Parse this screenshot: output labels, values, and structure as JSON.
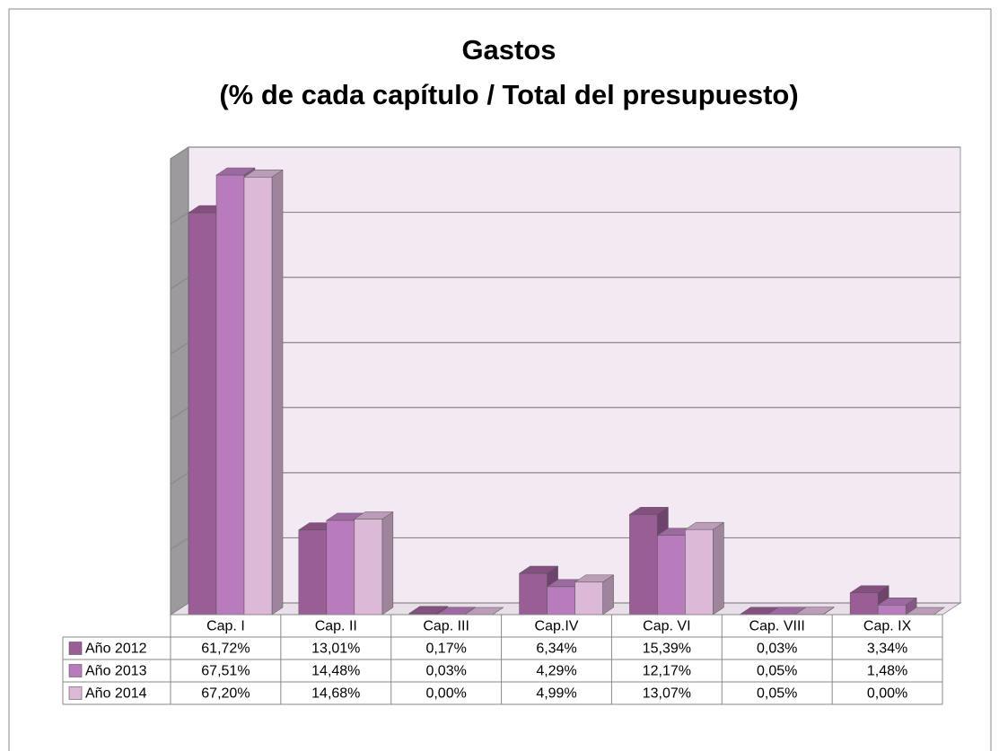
{
  "chart_data": {
    "type": "bar3d",
    "title": "Gastos",
    "subtitle": "(% de cada capítulo / Total del presupuesto)",
    "categories": [
      "Cap. I",
      "Cap. II",
      "Cap. III",
      "Cap.IV",
      "Cap. VI",
      "Cap. VIII",
      "Cap. IX"
    ],
    "series": [
      {
        "name": "Año 2012",
        "color": "#9a5e96",
        "values": [
          61.72,
          13.01,
          0.17,
          6.34,
          15.39,
          0.03,
          3.34
        ],
        "value_labels": [
          "61,72%",
          "13,01%",
          "0,17%",
          "6,34%",
          "15,39%",
          "0,03%",
          "3,34%"
        ]
      },
      {
        "name": "Año 2013",
        "color": "#b87cbc",
        "values": [
          67.51,
          14.48,
          0.03,
          4.29,
          12.17,
          0.05,
          1.48
        ],
        "value_labels": [
          "67,51%",
          "14,48%",
          "0,03%",
          "4,29%",
          "12,17%",
          "0,05%",
          "1,48%"
        ]
      },
      {
        "name": "Año 2014",
        "color": "#dcb9d7",
        "values": [
          67.2,
          14.68,
          0.0,
          4.99,
          13.07,
          0.05,
          0.0
        ],
        "value_labels": [
          "67,20%",
          "14,68%",
          "0,00%",
          "4,99%",
          "13,07%",
          "0,05%",
          "0,00%"
        ]
      }
    ],
    "ylim": [
      0,
      70
    ],
    "yticks": [
      0,
      10,
      20,
      30,
      40,
      50,
      60,
      70
    ],
    "grid": true
  }
}
